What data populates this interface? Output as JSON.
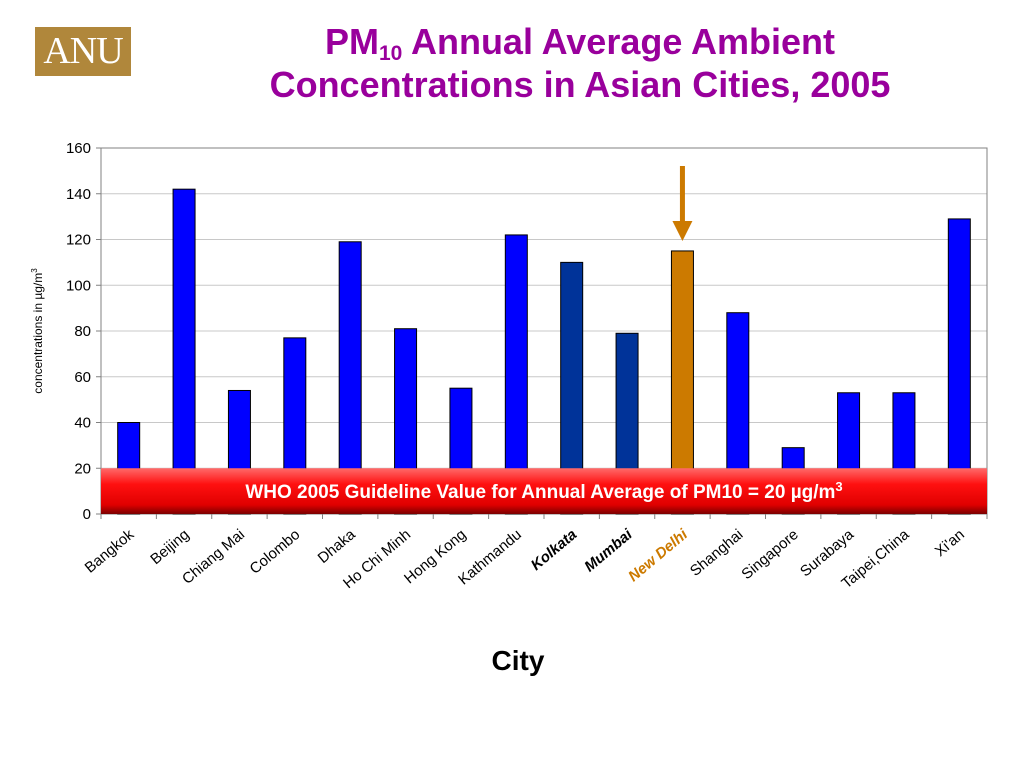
{
  "logo": {
    "text": "ANU",
    "color": "#b0873b"
  },
  "title": {
    "line1_prefix": "PM",
    "line1_subscript": "10",
    "line1_suffix": " Annual Average Ambient",
    "line2": "Concentrations in Asian Cities, 2005",
    "color": "#99009c"
  },
  "chart_data": {
    "type": "bar",
    "categories": [
      "Bangkok",
      "Beijing",
      "Chiang Mai",
      "Colombo",
      "Dhaka",
      "Ho Chi Minh",
      "Hong Kong",
      "Kathmandu",
      "Kolkata",
      "Mumbai",
      "New Delhi",
      "Shanghai",
      "Singapore",
      "Surabaya",
      "Taipei,China",
      "Xi'an"
    ],
    "values": [
      40,
      142,
      54,
      77,
      119,
      81,
      55,
      122,
      110,
      79,
      115,
      88,
      29,
      53,
      53,
      129
    ],
    "bar_colors": [
      "#0000ff",
      "#0000ff",
      "#0000ff",
      "#0000ff",
      "#0000ff",
      "#0000ff",
      "#0000ff",
      "#0000ff",
      "#003399",
      "#003399",
      "#cc7a00",
      "#0000ff",
      "#0000ff",
      "#0000ff",
      "#0000ff",
      "#0000ff"
    ],
    "highlighted_labels": {
      "Kolkata": "#000000",
      "Mumbai": "#000000",
      "New Delhi": "#cc7a00"
    },
    "xlabel": "City",
    "ylabel_prefix": "concentrations in µg/m",
    "ylabel_superscript": "3",
    "ylim": [
      0,
      160
    ],
    "yticks": [
      0,
      20,
      40,
      60,
      80,
      100,
      120,
      140,
      160
    ],
    "grid": true,
    "arrow": {
      "target": "New Delhi",
      "color": "#cc7a00"
    },
    "guideline": {
      "value": 20,
      "text": "WHO 2005 Guideline Value for Annual Average of PM10 = 20 µg/m",
      "superscript": "3",
      "color": "#ff0000"
    }
  }
}
